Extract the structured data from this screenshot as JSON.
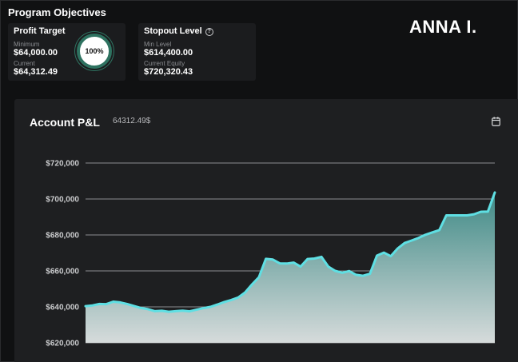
{
  "objectives": {
    "title": "Program Objectives",
    "profit_target": {
      "title": "Profit Target",
      "minimum_label": "Minimum",
      "minimum_value": "$64,000.00",
      "current_label": "Current",
      "current_value": "$64,312.49",
      "progress_label": "100%",
      "progress": 1.0
    },
    "stopout_level": {
      "title": "Stopout Level",
      "help_icon": "help-circle-icon",
      "min_label": "Min Level",
      "min_value": "$614,400.00",
      "equity_label": "Current Equity",
      "equity_value": "$720,320.43"
    }
  },
  "brand": "ANNA I.",
  "pnl_panel": {
    "title": "Account P&L",
    "amount": "64312.49$",
    "calendar_icon": "calendar-icon"
  },
  "colors": {
    "background": "#101112",
    "card": "#1b1c1e",
    "panel": "#1e1f21",
    "ring_accent": "#2e7260",
    "line": "#5fdfe3",
    "area_top": "#3f8a86",
    "area_bottom": "#d6dbdb"
  },
  "chart_data": {
    "type": "area",
    "title": "Account P&L",
    "xlabel": "",
    "ylabel": "",
    "ylim": [
      620000,
      720000
    ],
    "yticks": [
      {
        "value": 720000,
        "label": "$720,000"
      },
      {
        "value": 700000,
        "label": "$700,000"
      },
      {
        "value": 680000,
        "label": "$680,000"
      },
      {
        "value": 660000,
        "label": "$660,000"
      },
      {
        "value": 640000,
        "label": "$640,000"
      },
      {
        "value": 620000,
        "label": "$620,000"
      }
    ],
    "grid": true,
    "legend": "none",
    "values": [
      640400,
      640800,
      641600,
      641500,
      642900,
      642500,
      641600,
      640500,
      639400,
      638700,
      637600,
      637800,
      637300,
      637600,
      637900,
      637500,
      638400,
      639300,
      640000,
      641300,
      642700,
      643800,
      645200,
      648000,
      652500,
      656500,
      666700,
      666300,
      664200,
      664100,
      664600,
      662400,
      666600,
      666900,
      667800,
      662400,
      660000,
      659000,
      659900,
      657800,
      657300,
      658400,
      668500,
      670200,
      668200,
      672500,
      675500,
      676900,
      678300,
      680100,
      681400,
      682700,
      690900,
      690900,
      690900,
      690900,
      691500,
      692900,
      693000,
      703600
    ]
  }
}
